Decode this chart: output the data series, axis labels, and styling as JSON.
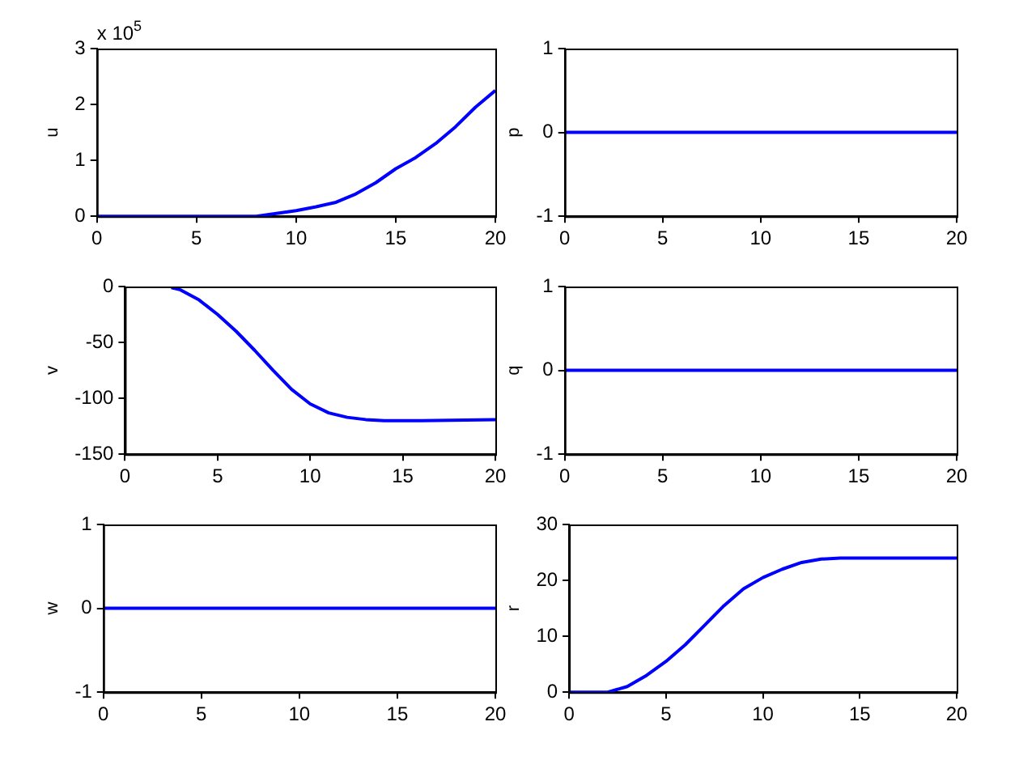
{
  "chart_data": [
    {
      "type": "line",
      "ylabel": "u",
      "annotations": [
        "x 10$^{5}$"
      ],
      "xlim": [
        0,
        20
      ],
      "xticks": [
        0,
        5,
        10,
        15,
        20
      ],
      "ylim": [
        0,
        3
      ],
      "yticks": [
        0,
        1,
        2,
        3
      ],
      "grid": false,
      "legend": false,
      "series": [
        {
          "color": "#0000ff",
          "x": [
            0,
            2,
            4,
            6,
            8,
            9,
            10,
            11,
            12,
            13,
            14,
            15,
            16,
            17,
            18,
            19,
            20
          ],
          "values": [
            0,
            0,
            0,
            0,
            0,
            0.05,
            0.1,
            0.17,
            0.25,
            0.4,
            0.6,
            0.85,
            1.05,
            1.3,
            1.6,
            1.95,
            2.25
          ]
        }
      ]
    },
    {
      "type": "line",
      "ylabel": "p",
      "xlim": [
        0,
        20
      ],
      "xticks": [
        0,
        5,
        10,
        15,
        20
      ],
      "ylim": [
        -1,
        1
      ],
      "yticks": [
        -1,
        0,
        1
      ],
      "grid": false,
      "legend": false,
      "series": [
        {
          "color": "#0000ff",
          "x": [
            0,
            20
          ],
          "values": [
            0,
            0
          ]
        }
      ]
    },
    {
      "type": "line",
      "ylabel": "v",
      "xlim": [
        0,
        20
      ],
      "xticks": [
        0,
        5,
        10,
        15,
        20
      ],
      "ylim": [
        -150,
        0
      ],
      "yticks": [
        -150,
        -100,
        -50,
        0
      ],
      "grid": false,
      "legend": false,
      "series": [
        {
          "color": "#0000ff",
          "x": [
            2.5,
            3,
            4,
            5,
            6,
            7,
            8,
            9,
            10,
            11,
            12,
            13,
            14,
            16,
            20
          ],
          "values": [
            -1,
            -3,
            -12,
            -25,
            -40,
            -57,
            -75,
            -92,
            -105,
            -113,
            -117,
            -119,
            -120,
            -120,
            -119
          ]
        }
      ]
    },
    {
      "type": "line",
      "ylabel": "q",
      "xlim": [
        0,
        20
      ],
      "xticks": [
        0,
        5,
        10,
        15,
        20
      ],
      "ylim": [
        -1,
        1
      ],
      "yticks": [
        -1,
        0,
        1
      ],
      "grid": false,
      "legend": false,
      "series": [
        {
          "color": "#0000ff",
          "x": [
            0,
            20
          ],
          "values": [
            0,
            0
          ]
        }
      ]
    },
    {
      "type": "line",
      "ylabel": "w",
      "xlim": [
        0,
        20
      ],
      "xticks": [
        0,
        5,
        10,
        15,
        20
      ],
      "ylim": [
        -1,
        1
      ],
      "yticks": [
        -1,
        0,
        1
      ],
      "grid": false,
      "legend": false,
      "series": [
        {
          "color": "#0000ff",
          "x": [
            0,
            20
          ],
          "values": [
            0,
            0
          ]
        }
      ]
    },
    {
      "type": "line",
      "ylabel": "r",
      "xlim": [
        0,
        20
      ],
      "xticks": [
        0,
        5,
        10,
        15,
        20
      ],
      "ylim": [
        0,
        30
      ],
      "yticks": [
        0,
        10,
        20,
        30
      ],
      "grid": false,
      "legend": false,
      "series": [
        {
          "color": "#0000ff",
          "x": [
            0,
            2,
            3,
            4,
            5,
            6,
            7,
            8,
            9,
            10,
            11,
            12,
            13,
            14,
            20
          ],
          "values": [
            0,
            0,
            1,
            3,
            5.5,
            8.5,
            12,
            15.5,
            18.5,
            20.5,
            22,
            23.2,
            23.8,
            24,
            24
          ]
        }
      ]
    }
  ]
}
